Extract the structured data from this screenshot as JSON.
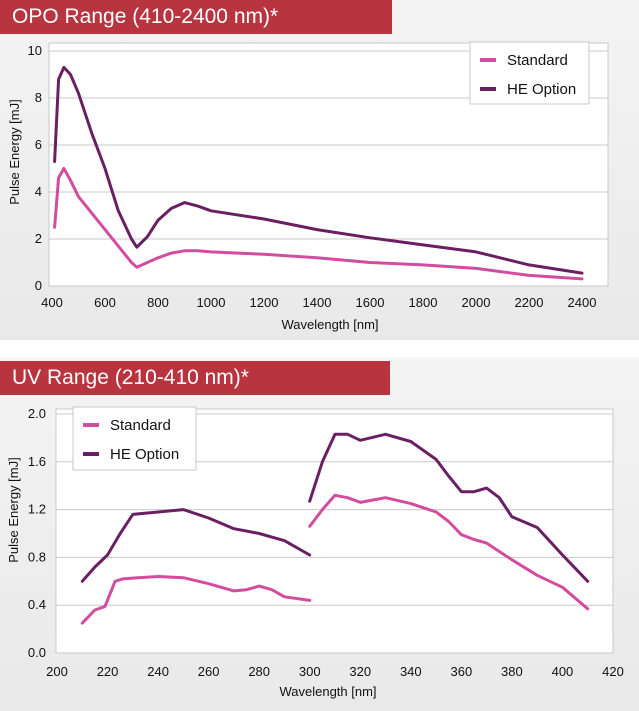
{
  "chart_data": [
    {
      "type": "line",
      "title": "OPO Range",
      "subtitle": "(410-2400 nm)*",
      "xlabel": "Wavelength [nm]",
      "ylabel": "Pulse Energy [mJ]",
      "xlim": [
        400,
        2450
      ],
      "ylim": [
        0,
        10
      ],
      "xticks": [
        400,
        600,
        800,
        1000,
        1200,
        1400,
        1600,
        1800,
        2000,
        2200,
        2400
      ],
      "yticks": [
        0,
        2,
        4,
        6,
        8,
        10
      ],
      "grid": "horizontal",
      "legend_position": "top-right",
      "series": [
        {
          "name": "Standard",
          "color": "#d24c9f",
          "segments": [
            [
              [
                410,
                2.5
              ],
              [
                425,
                4.6
              ],
              [
                445,
                5.0
              ],
              [
                470,
                4.5
              ],
              [
                500,
                3.8
              ],
              [
                550,
                3.1
              ],
              [
                600,
                2.4
              ],
              [
                650,
                1.7
              ],
              [
                700,
                1.0
              ],
              [
                720,
                0.8
              ],
              [
                760,
                1.0
              ],
              [
                800,
                1.2
              ],
              [
                850,
                1.4
              ],
              [
                900,
                1.5
              ],
              [
                950,
                1.5
              ],
              [
                1000,
                1.45
              ],
              [
                1200,
                1.35
              ],
              [
                1400,
                1.2
              ],
              [
                1600,
                1.0
              ],
              [
                1800,
                0.9
              ],
              [
                2000,
                0.75
              ],
              [
                2200,
                0.45
              ],
              [
                2400,
                0.3
              ]
            ]
          ]
        },
        {
          "name": "HE Option",
          "color": "#6a1f63",
          "segments": [
            [
              [
                410,
                5.3
              ],
              [
                425,
                8.8
              ],
              [
                445,
                9.3
              ],
              [
                470,
                9.0
              ],
              [
                500,
                8.2
              ],
              [
                550,
                6.5
              ],
              [
                600,
                5.0
              ],
              [
                650,
                3.2
              ],
              [
                700,
                2.0
              ],
              [
                720,
                1.65
              ],
              [
                760,
                2.1
              ],
              [
                800,
                2.8
              ],
              [
                850,
                3.3
              ],
              [
                900,
                3.55
              ],
              [
                950,
                3.4
              ],
              [
                1000,
                3.2
              ],
              [
                1200,
                2.85
              ],
              [
                1400,
                2.4
              ],
              [
                1600,
                2.05
              ],
              [
                1800,
                1.75
              ],
              [
                2000,
                1.45
              ],
              [
                2200,
                0.9
              ],
              [
                2400,
                0.55
              ]
            ]
          ]
        }
      ]
    },
    {
      "type": "line",
      "title": "UV Range",
      "subtitle": "(210-410 nm)*",
      "xlabel": "Wavelength [nm]",
      "ylabel": "Pulse Energy [mJ]",
      "xlim": [
        200,
        420
      ],
      "ylim": [
        0,
        2.0
      ],
      "xticks": [
        200,
        220,
        240,
        260,
        280,
        300,
        320,
        340,
        360,
        380,
        400,
        420
      ],
      "yticks": [
        "0.0",
        "0.4",
        "0.8",
        "1.2",
        "1.6",
        "2.0"
      ],
      "grid": "horizontal",
      "legend_position": "top-left",
      "series": [
        {
          "name": "Standard",
          "color": "#d24c9f",
          "segments": [
            [
              [
                210,
                0.25
              ],
              [
                215,
                0.36
              ],
              [
                219,
                0.39
              ],
              [
                223,
                0.6
              ],
              [
                226,
                0.62
              ],
              [
                232,
                0.63
              ],
              [
                240,
                0.64
              ],
              [
                250,
                0.63
              ],
              [
                260,
                0.58
              ],
              [
                270,
                0.52
              ],
              [
                275,
                0.53
              ],
              [
                280,
                0.56
              ],
              [
                285,
                0.53
              ],
              [
                290,
                0.47
              ],
              [
                300,
                0.44
              ]
            ],
            [
              [
                300,
                1.06
              ],
              [
                305,
                1.2
              ],
              [
                310,
                1.32
              ],
              [
                315,
                1.3
              ],
              [
                320,
                1.26
              ],
              [
                325,
                1.28
              ],
              [
                330,
                1.3
              ],
              [
                340,
                1.25
              ],
              [
                350,
                1.18
              ],
              [
                355,
                1.1
              ],
              [
                360,
                0.99
              ],
              [
                365,
                0.95
              ],
              [
                370,
                0.92
              ],
              [
                380,
                0.78
              ],
              [
                390,
                0.65
              ],
              [
                400,
                0.55
              ],
              [
                410,
                0.37
              ]
            ]
          ]
        },
        {
          "name": "HE Option",
          "color": "#6a1f63",
          "segments": [
            [
              [
                210,
                0.6
              ],
              [
                215,
                0.72
              ],
              [
                220,
                0.82
              ],
              [
                225,
                1.0
              ],
              [
                230,
                1.16
              ],
              [
                240,
                1.18
              ],
              [
                250,
                1.2
              ],
              [
                260,
                1.13
              ],
              [
                270,
                1.04
              ],
              [
                280,
                1.0
              ],
              [
                290,
                0.94
              ],
              [
                300,
                0.82
              ]
            ],
            [
              [
                300,
                1.27
              ],
              [
                305,
                1.6
              ],
              [
                310,
                1.83
              ],
              [
                315,
                1.83
              ],
              [
                320,
                1.78
              ],
              [
                330,
                1.83
              ],
              [
                340,
                1.77
              ],
              [
                350,
                1.62
              ],
              [
                355,
                1.48
              ],
              [
                360,
                1.35
              ],
              [
                365,
                1.35
              ],
              [
                370,
                1.38
              ],
              [
                375,
                1.3
              ],
              [
                380,
                1.14
              ],
              [
                390,
                1.05
              ],
              [
                400,
                0.82
              ],
              [
                410,
                0.6
              ]
            ]
          ]
        }
      ]
    }
  ]
}
